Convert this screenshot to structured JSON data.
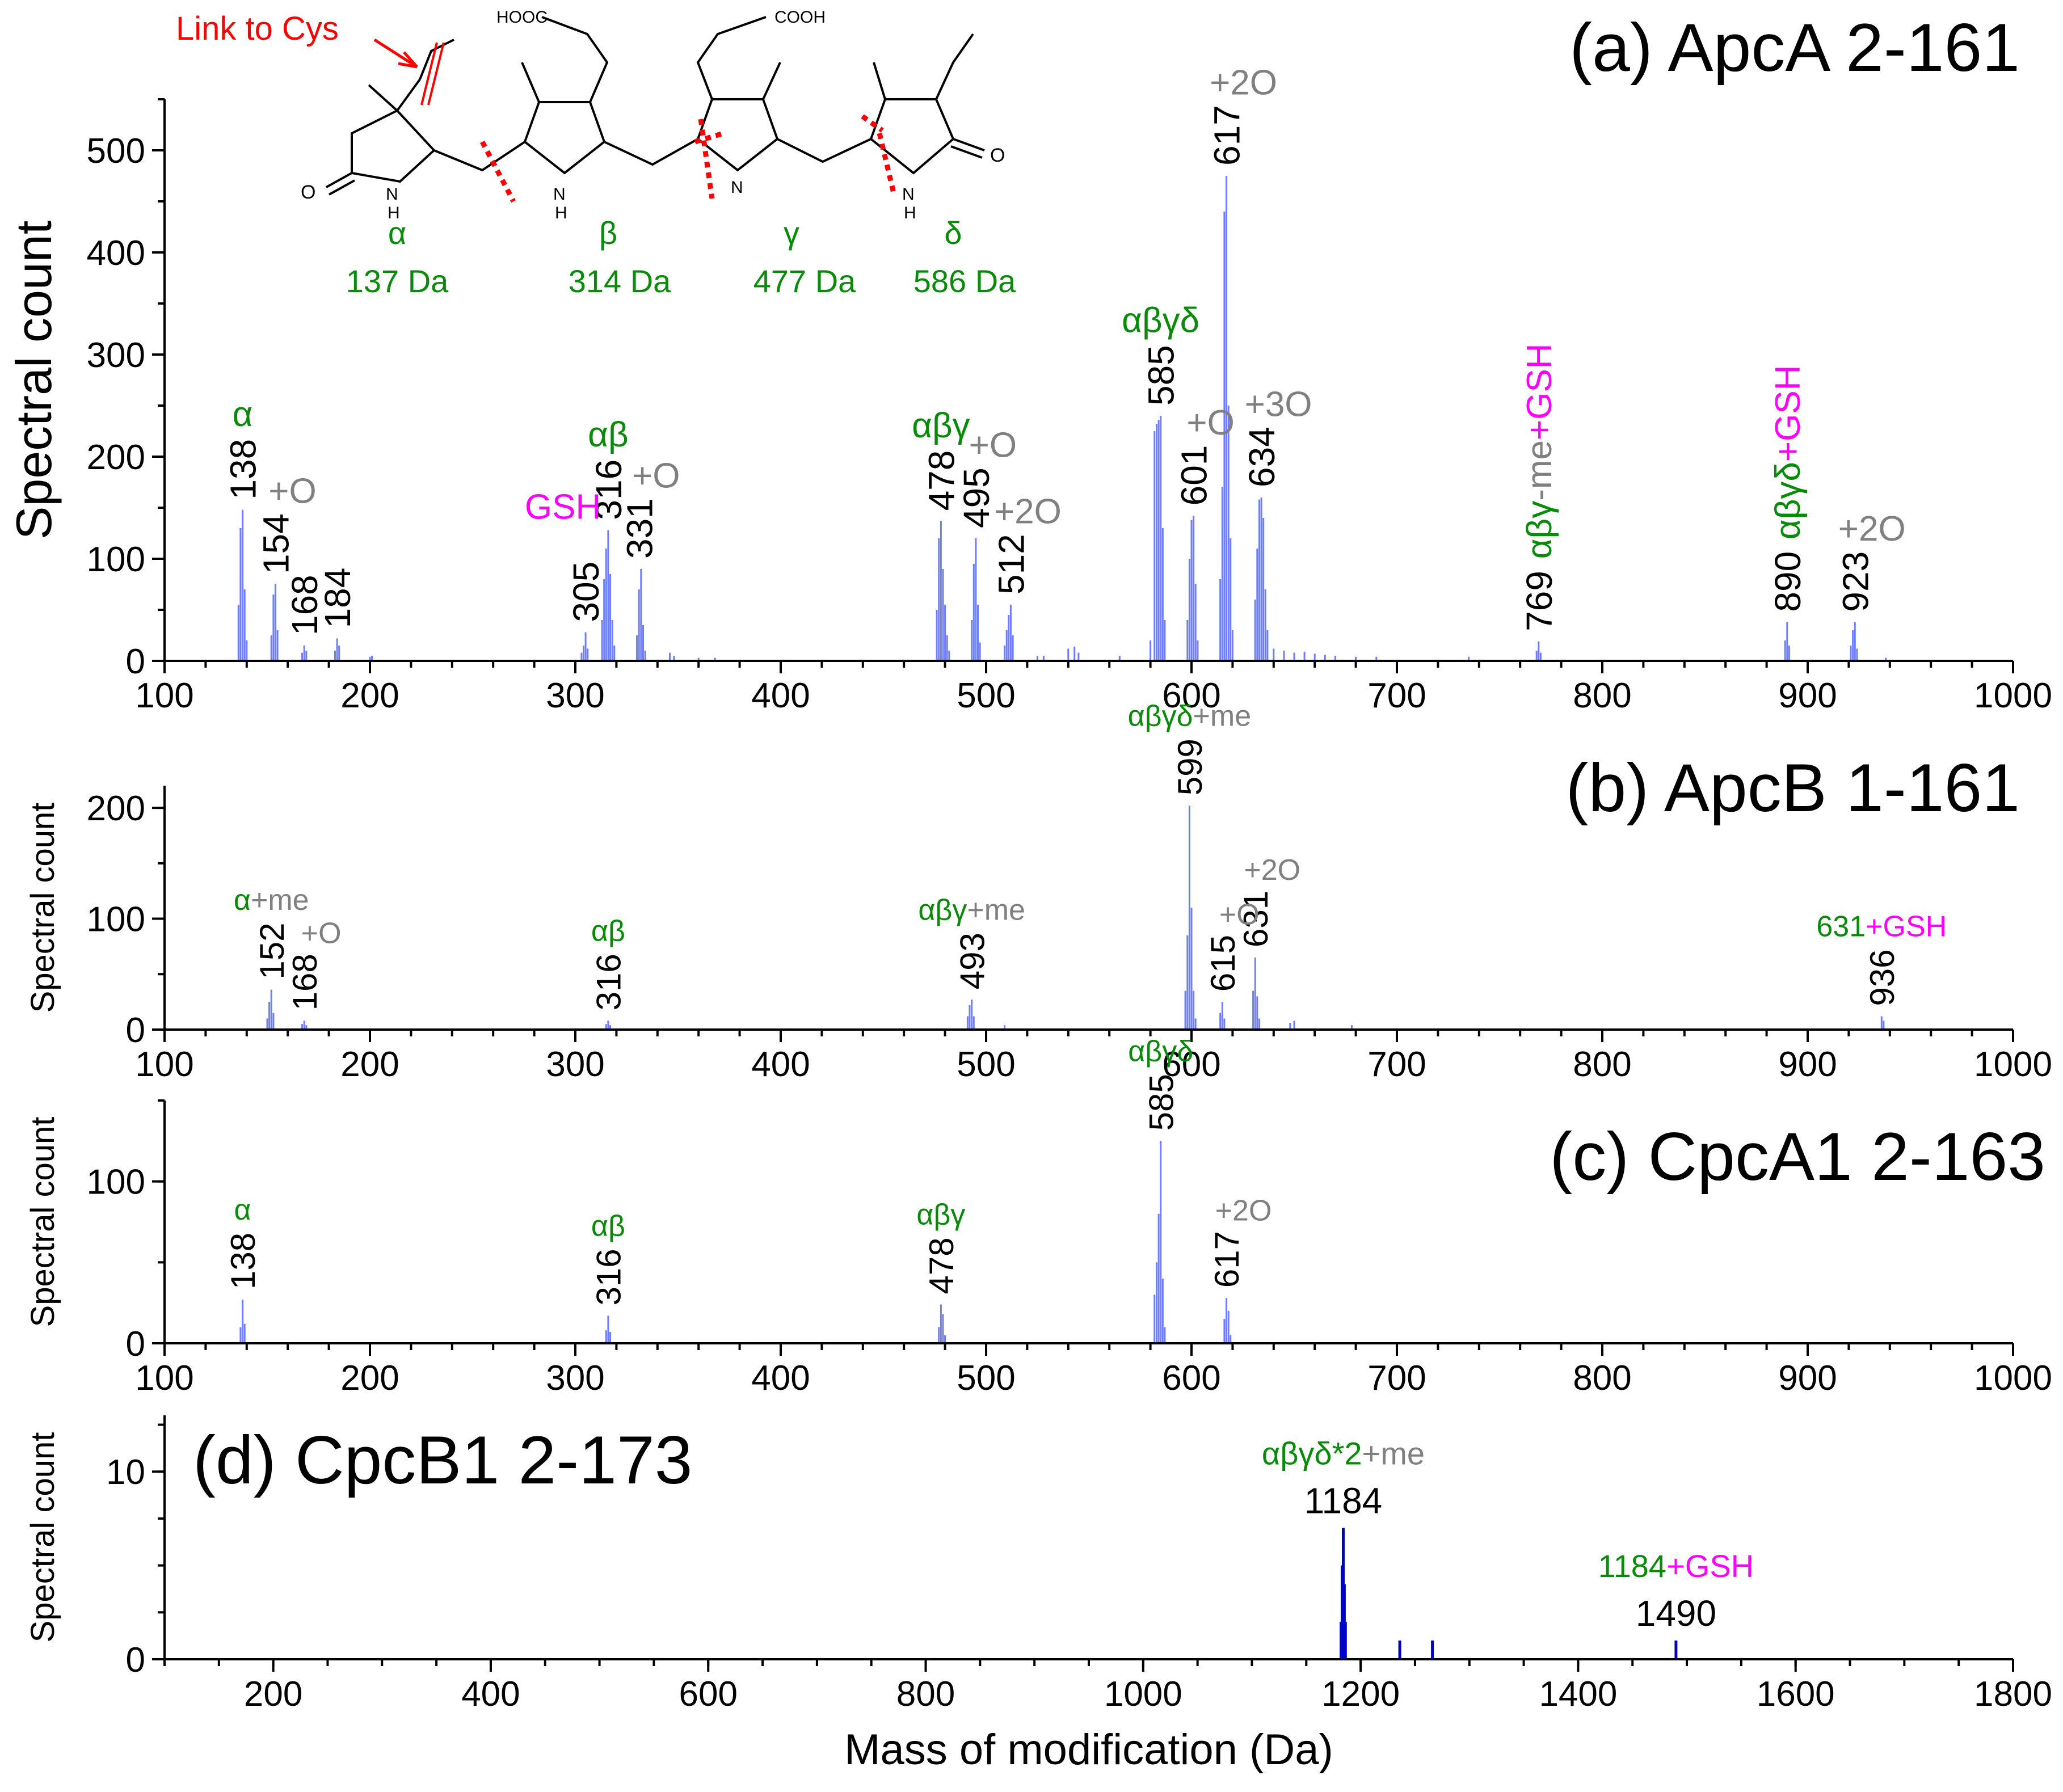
{
  "colors": {
    "bar": "#6e7cff",
    "bar_dark": "#0000cc",
    "green": "#0a8a0a",
    "gray": "#808080",
    "magenta": "#ff00ff",
    "red": "#ff0000",
    "black": "#000000"
  },
  "structure": {
    "link_label": "Link to Cys",
    "hooc_label": "HOOC",
    "cooh_label": "COOH",
    "n_labels": [
      "N",
      "H",
      "N",
      "H",
      "N",
      "N",
      "H"
    ],
    "o_labels": [
      "O",
      "O"
    ],
    "rings": [
      {
        "name": "α",
        "mass": "137 Da"
      },
      {
        "name": "β",
        "mass": "314 Da"
      },
      {
        "name": "γ",
        "mass": "477 Da"
      },
      {
        "name": "δ",
        "mass": "586 Da"
      }
    ]
  },
  "chart_data": [
    {
      "panel": "a",
      "type": "bar",
      "title": "(a) ApcA 2-161",
      "xlabel": "",
      "ylabel": "Spectral count",
      "xlim": [
        100,
        1000
      ],
      "ylim": [
        0,
        550
      ],
      "xticks": [
        100,
        200,
        300,
        400,
        500,
        600,
        700,
        800,
        900,
        1000
      ],
      "yticks": [
        0,
        100,
        200,
        300,
        400,
        500
      ],
      "peaks": [
        [
          136,
          55
        ],
        [
          137,
          130
        ],
        [
          138,
          148
        ],
        [
          139,
          70
        ],
        [
          140,
          20
        ],
        [
          152,
          25
        ],
        [
          153,
          65
        ],
        [
          154,
          75
        ],
        [
          155,
          30
        ],
        [
          167,
          8
        ],
        [
          168,
          15
        ],
        [
          169,
          10
        ],
        [
          183,
          10
        ],
        [
          184,
          22
        ],
        [
          185,
          15
        ],
        [
          200,
          4
        ],
        [
          201,
          5
        ],
        [
          303,
          8
        ],
        [
          304,
          15
        ],
        [
          305,
          28
        ],
        [
          306,
          12
        ],
        [
          313,
          40
        ],
        [
          314,
          80
        ],
        [
          315,
          110
        ],
        [
          316,
          128
        ],
        [
          317,
          85
        ],
        [
          318,
          40
        ],
        [
          319,
          15
        ],
        [
          330,
          25
        ],
        [
          331,
          70
        ],
        [
          332,
          90
        ],
        [
          333,
          35
        ],
        [
          334,
          10
        ],
        [
          346,
          8
        ],
        [
          348,
          5
        ],
        [
          360,
          3
        ],
        [
          368,
          3
        ],
        [
          476,
          50
        ],
        [
          477,
          120
        ],
        [
          478,
          137
        ],
        [
          479,
          90
        ],
        [
          480,
          55
        ],
        [
          481,
          25
        ],
        [
          482,
          10
        ],
        [
          493,
          40
        ],
        [
          494,
          95
        ],
        [
          495,
          120
        ],
        [
          496,
          55
        ],
        [
          497,
          18
        ],
        [
          509,
          15
        ],
        [
          510,
          30
        ],
        [
          511,
          45
        ],
        [
          512,
          55
        ],
        [
          513,
          25
        ],
        [
          525,
          5
        ],
        [
          528,
          5
        ],
        [
          540,
          12
        ],
        [
          543,
          14
        ],
        [
          545,
          8
        ],
        [
          565,
          5
        ],
        [
          580,
          20
        ],
        [
          582,
          225
        ],
        [
          583,
          232
        ],
        [
          584,
          236
        ],
        [
          585,
          240
        ],
        [
          586,
          130
        ],
        [
          587,
          40
        ],
        [
          598,
          40
        ],
        [
          599,
          100
        ],
        [
          600,
          138
        ],
        [
          601,
          142
        ],
        [
          602,
          75
        ],
        [
          603,
          20
        ],
        [
          614,
          80
        ],
        [
          615,
          170
        ],
        [
          616,
          440
        ],
        [
          617,
          475
        ],
        [
          618,
          250
        ],
        [
          619,
          120
        ],
        [
          620,
          30
        ],
        [
          631,
          60
        ],
        [
          632,
          110
        ],
        [
          633,
          158
        ],
        [
          634,
          160
        ],
        [
          635,
          140
        ],
        [
          636,
          70
        ],
        [
          637,
          30
        ],
        [
          640,
          12
        ],
        [
          645,
          10
        ],
        [
          650,
          8
        ],
        [
          655,
          9
        ],
        [
          660,
          7
        ],
        [
          665,
          6
        ],
        [
          670,
          5
        ],
        [
          680,
          4
        ],
        [
          690,
          4
        ],
        [
          735,
          4
        ],
        [
          768,
          10
        ],
        [
          769,
          19
        ],
        [
          770,
          8
        ],
        [
          889,
          20
        ],
        [
          890,
          38
        ],
        [
          891,
          15
        ],
        [
          921,
          15
        ],
        [
          922,
          30
        ],
        [
          923,
          38
        ],
        [
          924,
          12
        ],
        [
          938,
          3
        ]
      ],
      "labels": [
        {
          "x": 138,
          "text": "138"
        },
        {
          "x": 154,
          "text": "154"
        },
        {
          "x": 168,
          "text": "168"
        },
        {
          "x": 184,
          "text": "184"
        },
        {
          "x": 305,
          "text": "305"
        },
        {
          "x": 316,
          "text": "316"
        },
        {
          "x": 331,
          "text": "331"
        },
        {
          "x": 478,
          "text": "478"
        },
        {
          "x": 495,
          "text": "495"
        },
        {
          "x": 512,
          "text": "512"
        },
        {
          "x": 585,
          "text": "585"
        },
        {
          "x": 601,
          "text": "601"
        },
        {
          "x": 617,
          "text": "617"
        },
        {
          "x": 634,
          "text": "634"
        },
        {
          "x": 769,
          "text": "769"
        },
        {
          "x": 890,
          "text": "890"
        },
        {
          "x": 923,
          "text": "923"
        }
      ],
      "annotations": [
        {
          "x": 138,
          "parts": [
            {
              "t": "α",
              "c": "green"
            }
          ]
        },
        {
          "x": 154,
          "parts": [
            {
              "t": "+O",
              "c": "gray"
            }
          ]
        },
        {
          "x": 316,
          "parts": [
            {
              "t": "αβ",
              "c": "green"
            }
          ]
        },
        {
          "x": 305,
          "parts": [
            {
              "t": "GSH",
              "c": "magenta"
            }
          ]
        },
        {
          "x": 331,
          "parts": [
            {
              "t": "+O",
              "c": "gray"
            }
          ]
        },
        {
          "x": 478,
          "parts": [
            {
              "t": "αβγ",
              "c": "green"
            }
          ]
        },
        {
          "x": 495,
          "parts": [
            {
              "t": "+O",
              "c": "gray"
            }
          ]
        },
        {
          "x": 512,
          "parts": [
            {
              "t": "+2O",
              "c": "gray"
            }
          ]
        },
        {
          "x": 585,
          "parts": [
            {
              "t": "αβγδ",
              "c": "green"
            }
          ]
        },
        {
          "x": 601,
          "parts": [
            {
              "t": "+O",
              "c": "gray"
            }
          ]
        },
        {
          "x": 617,
          "parts": [
            {
              "t": "+2O",
              "c": "gray"
            }
          ]
        },
        {
          "x": 634,
          "parts": [
            {
              "t": "+3O",
              "c": "gray"
            }
          ]
        },
        {
          "x": 769,
          "parts": [
            {
              "t": "αβγ",
              "c": "green"
            },
            {
              "t": "-me",
              "c": "gray"
            },
            {
              "t": "+GSH",
              "c": "magenta"
            }
          ]
        },
        {
          "x": 890,
          "parts": [
            {
              "t": "αβγδ",
              "c": "green"
            },
            {
              "t": "+GSH",
              "c": "magenta"
            }
          ]
        },
        {
          "x": 923,
          "parts": [
            {
              "t": "+2O",
              "c": "gray"
            }
          ]
        }
      ]
    },
    {
      "panel": "b",
      "type": "bar",
      "title": "(b) ApcB 1-161",
      "xlabel": "",
      "ylabel": "Spectral count",
      "xlim": [
        100,
        1000
      ],
      "ylim": [
        0,
        220
      ],
      "xticks": [
        100,
        200,
        300,
        400,
        500,
        600,
        700,
        800,
        900,
        1000
      ],
      "yticks": [
        0,
        100,
        200
      ],
      "peaks": [
        [
          150,
          10
        ],
        [
          151,
          25
        ],
        [
          152,
          36
        ],
        [
          153,
          15
        ],
        [
          167,
          5
        ],
        [
          168,
          8
        ],
        [
          169,
          4
        ],
        [
          315,
          5
        ],
        [
          316,
          8
        ],
        [
          317,
          4
        ],
        [
          491,
          12
        ],
        [
          492,
          22
        ],
        [
          493,
          27
        ],
        [
          494,
          12
        ],
        [
          509,
          4
        ],
        [
          597,
          35
        ],
        [
          598,
          85
        ],
        [
          599,
          202
        ],
        [
          600,
          110
        ],
        [
          601,
          35
        ],
        [
          602,
          10
        ],
        [
          614,
          15
        ],
        [
          615,
          25
        ],
        [
          616,
          10
        ],
        [
          630,
          35
        ],
        [
          631,
          65
        ],
        [
          632,
          30
        ],
        [
          633,
          10
        ],
        [
          648,
          6
        ],
        [
          650,
          8
        ],
        [
          678,
          4
        ],
        [
          936,
          12
        ],
        [
          937,
          8
        ]
      ],
      "labels": [
        {
          "x": 152,
          "text": "152"
        },
        {
          "x": 168,
          "text": "168"
        },
        {
          "x": 316,
          "text": "316"
        },
        {
          "x": 493,
          "text": "493"
        },
        {
          "x": 599,
          "text": "599"
        },
        {
          "x": 615,
          "text": "615"
        },
        {
          "x": 631,
          "text": "631"
        },
        {
          "x": 936,
          "text": "936"
        }
      ],
      "annotations": [
        {
          "x": 152,
          "parts": [
            {
              "t": "α",
              "c": "green"
            },
            {
              "t": "+me",
              "c": "gray"
            }
          ]
        },
        {
          "x": 168,
          "parts": [
            {
              "t": "+O",
              "c": "gray"
            }
          ]
        },
        {
          "x": 316,
          "parts": [
            {
              "t": "αβ",
              "c": "green"
            }
          ]
        },
        {
          "x": 493,
          "parts": [
            {
              "t": "αβγ",
              "c": "green"
            },
            {
              "t": "+me",
              "c": "gray"
            }
          ]
        },
        {
          "x": 599,
          "parts": [
            {
              "t": "αβγδ",
              "c": "green"
            },
            {
              "t": "+me",
              "c": "gray"
            }
          ]
        },
        {
          "x": 615,
          "parts": [
            {
              "t": "+O",
              "c": "gray"
            }
          ]
        },
        {
          "x": 631,
          "parts": [
            {
              "t": "+2O",
              "c": "gray"
            }
          ]
        },
        {
          "x": 936,
          "parts": [
            {
              "t": "631",
              "c": "green"
            },
            {
              "t": "+GSH",
              "c": "magenta"
            }
          ]
        }
      ]
    },
    {
      "panel": "c",
      "type": "bar",
      "title": "(c) CpcA1 2-163",
      "xlabel": "",
      "ylabel": "Spectral count",
      "xlim": [
        100,
        1000
      ],
      "ylim": [
        0,
        150
      ],
      "xticks": [
        100,
        200,
        300,
        400,
        500,
        600,
        700,
        800,
        900,
        1000
      ],
      "yticks": [
        0,
        100
      ],
      "peaks": [
        [
          137,
          10
        ],
        [
          138,
          27
        ],
        [
          139,
          12
        ],
        [
          315,
          8
        ],
        [
          316,
          17
        ],
        [
          317,
          7
        ],
        [
          477,
          10
        ],
        [
          478,
          24
        ],
        [
          479,
          18
        ],
        [
          480,
          5
        ],
        [
          582,
          30
        ],
        [
          583,
          50
        ],
        [
          584,
          80
        ],
        [
          585,
          125
        ],
        [
          586,
          40
        ],
        [
          587,
          10
        ],
        [
          616,
          15
        ],
        [
          617,
          28
        ],
        [
          618,
          20
        ],
        [
          619,
          5
        ]
      ],
      "labels": [
        {
          "x": 138,
          "text": "138"
        },
        {
          "x": 316,
          "text": "316"
        },
        {
          "x": 478,
          "text": "478"
        },
        {
          "x": 585,
          "text": "585"
        },
        {
          "x": 617,
          "text": "617"
        }
      ],
      "annotations": [
        {
          "x": 138,
          "parts": [
            {
              "t": "α",
              "c": "green"
            }
          ]
        },
        {
          "x": 316,
          "parts": [
            {
              "t": "αβ",
              "c": "green"
            }
          ]
        },
        {
          "x": 478,
          "parts": [
            {
              "t": "αβγ",
              "c": "green"
            }
          ]
        },
        {
          "x": 585,
          "parts": [
            {
              "t": "αβγδ",
              "c": "green"
            }
          ]
        },
        {
          "x": 617,
          "parts": [
            {
              "t": "+2O",
              "c": "gray"
            }
          ]
        }
      ]
    },
    {
      "panel": "d",
      "type": "bar",
      "title": "(d) CpcB1 2-173",
      "xlabel": "Mass of modification (Da)",
      "ylabel": "Spectral count",
      "xlim": [
        100,
        1800
      ],
      "ylim": [
        0,
        13
      ],
      "xticks": [
        200,
        400,
        600,
        800,
        1000,
        1200,
        1400,
        1600,
        1800
      ],
      "yticks": [
        0,
        10
      ],
      "peaks": [
        [
          1182,
          2
        ],
        [
          1183,
          5
        ],
        [
          1184,
          7
        ],
        [
          1185,
          4
        ],
        [
          1186,
          2
        ],
        [
          1236,
          1
        ],
        [
          1266,
          1
        ],
        [
          1490,
          1
        ]
      ],
      "labels": [
        {
          "x": 1184,
          "text": "1184"
        },
        {
          "x": 1490,
          "text": "1490"
        }
      ],
      "annotations": [
        {
          "x": 1184,
          "parts": [
            {
              "t": "αβγδ",
              "c": "green"
            },
            {
              "t": "*2",
              "c": "green"
            },
            {
              "t": "+me",
              "c": "gray"
            }
          ]
        },
        {
          "x": 1490,
          "parts": [
            {
              "t": "1184",
              "c": "green"
            },
            {
              "t": "+GSH",
              "c": "magenta"
            }
          ]
        }
      ]
    }
  ]
}
